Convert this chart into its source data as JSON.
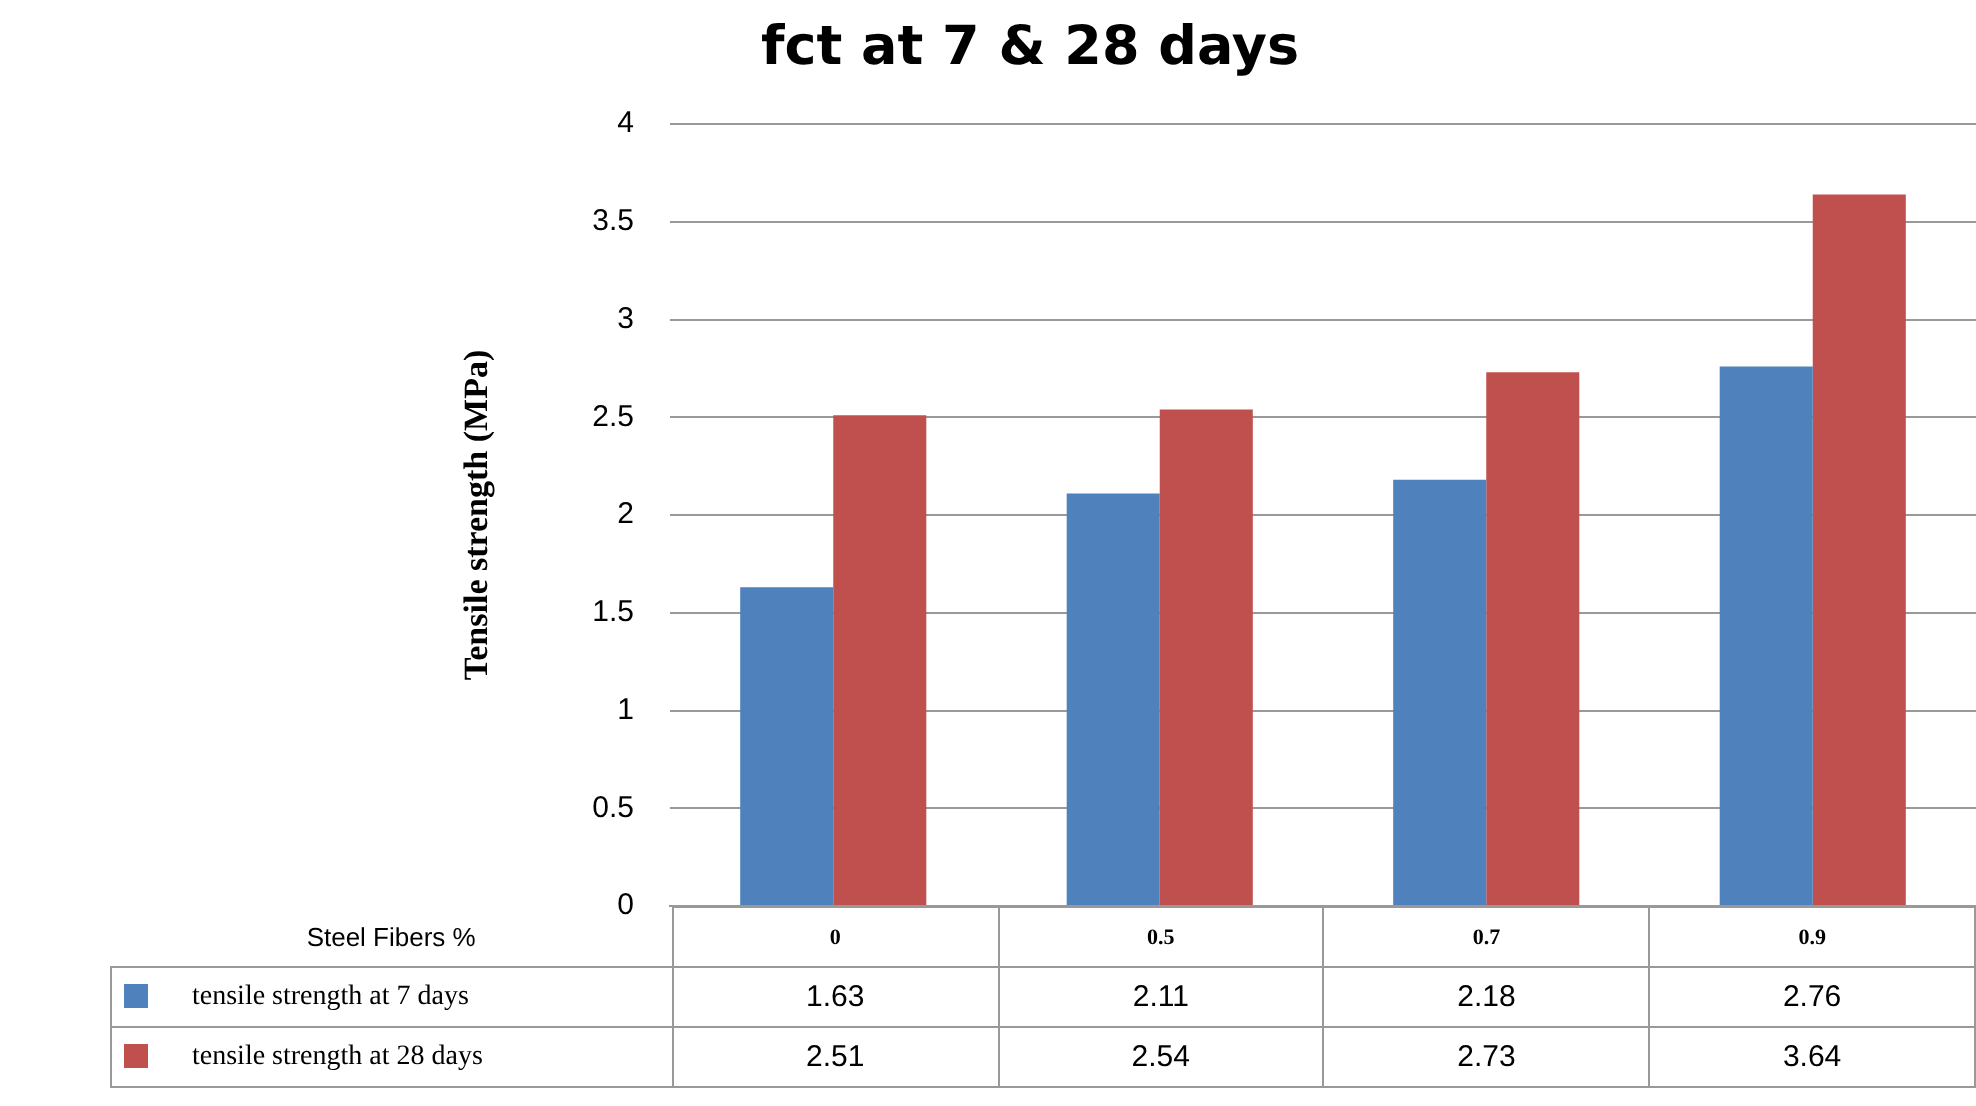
{
  "chart_data": {
    "type": "bar",
    "title": "fct  at 7 & 28 days",
    "xlabel": "Steel Fibers %",
    "ylabel": "Tensile strength (MPa)",
    "categories": [
      "0",
      "0.5",
      "0.7",
      "0.9"
    ],
    "series": [
      {
        "name": "tensile strength at 7 days",
        "color": "#4f81bd",
        "values": [
          1.63,
          2.11,
          2.18,
          2.76
        ]
      },
      {
        "name": "tensile strength at 28 days",
        "color": "#c0504d",
        "values": [
          2.51,
          2.54,
          2.73,
          3.64
        ]
      }
    ],
    "ylim": [
      0,
      4
    ],
    "yticks": [
      0,
      0.5,
      1,
      1.5,
      2,
      2.5,
      3,
      3.5,
      4
    ],
    "grid": "y",
    "legend": "bottom",
    "data_labels": true
  }
}
